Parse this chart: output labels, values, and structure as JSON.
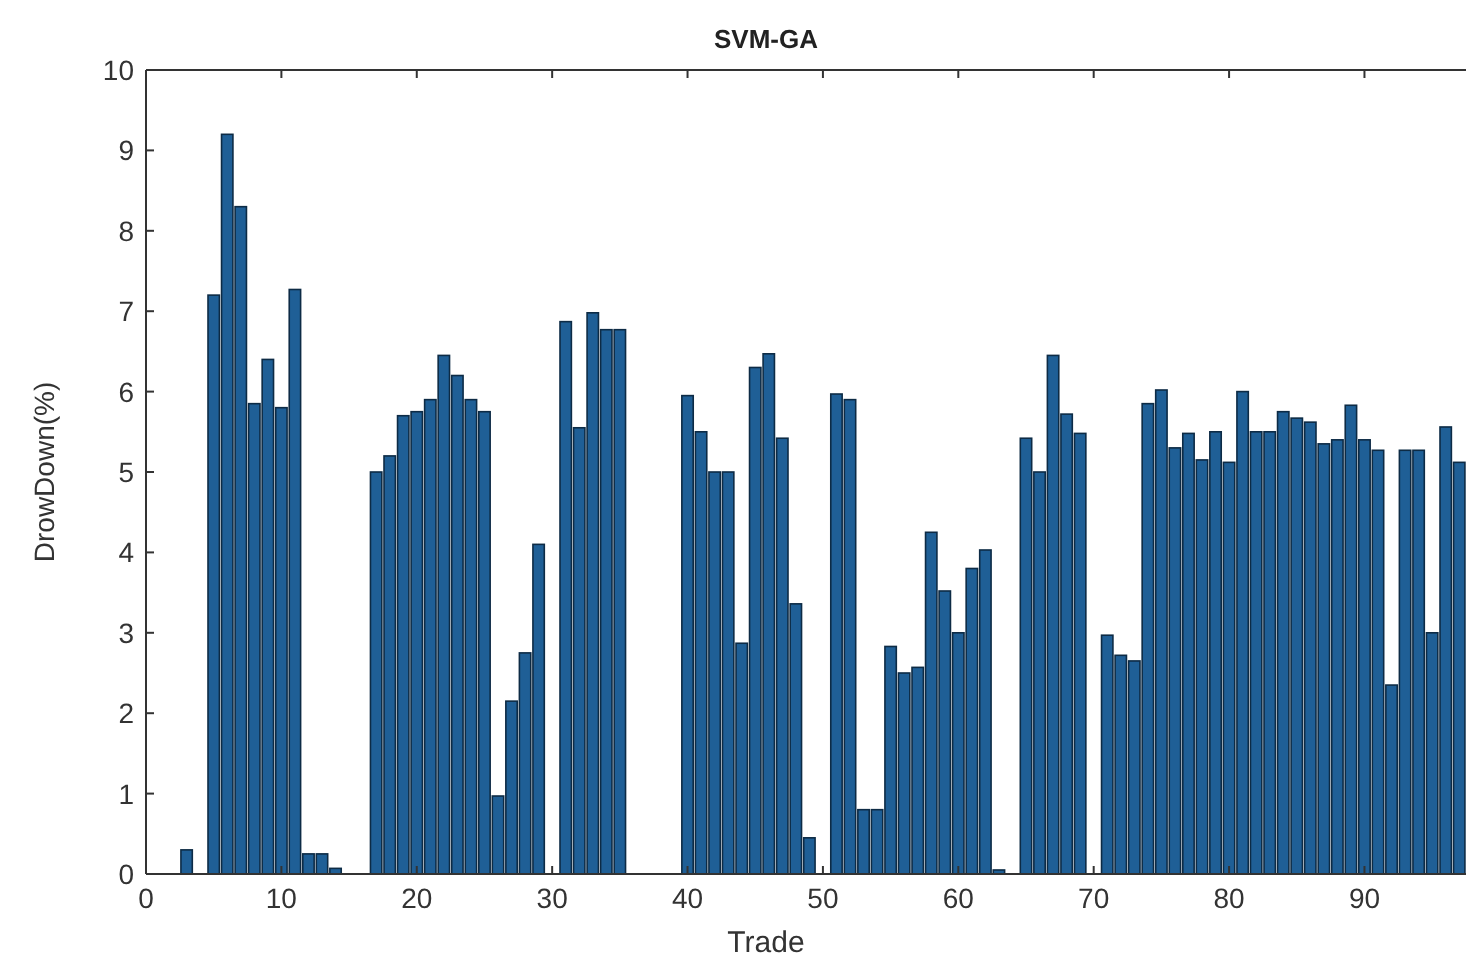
{
  "chart_data": {
    "type": "bar",
    "title": "SVM-GA",
    "xlabel": "Trade",
    "ylabel": "DrowDown(%)",
    "x": [
      1,
      2,
      3,
      4,
      5,
      6,
      7,
      8,
      9,
      10,
      11,
      12,
      13,
      14,
      15,
      16,
      17,
      18,
      19,
      20,
      21,
      22,
      23,
      24,
      25,
      26,
      27,
      28,
      29,
      30,
      31,
      32,
      33,
      34,
      35,
      36,
      37,
      38,
      39,
      40,
      41,
      42,
      43,
      44,
      45,
      46,
      47,
      48,
      49,
      50,
      51,
      52,
      53,
      54,
      55,
      56,
      57,
      58,
      59,
      60,
      61,
      62,
      63,
      64,
      65,
      66,
      67,
      68,
      69,
      70,
      71,
      72,
      73,
      74,
      75,
      76,
      77,
      78,
      79,
      80,
      81,
      82,
      83,
      84,
      85,
      86,
      87,
      88,
      89,
      90,
      91,
      92,
      93,
      94,
      95,
      96,
      97
    ],
    "values": [
      0,
      0,
      0.3,
      0,
      7.2,
      9.2,
      8.3,
      5.85,
      6.4,
      5.8,
      7.27,
      0.25,
      0.25,
      0.07,
      0,
      0,
      5.0,
      5.2,
      5.7,
      5.75,
      5.9,
      6.45,
      6.2,
      5.9,
      5.75,
      0.97,
      2.15,
      2.75,
      4.1,
      0,
      6.87,
      5.55,
      6.98,
      6.77,
      6.77,
      0,
      0,
      0,
      0,
      5.95,
      5.5,
      5.0,
      5.0,
      2.87,
      6.3,
      6.47,
      5.42,
      3.36,
      0.45,
      0,
      5.97,
      5.9,
      0.8,
      0.8,
      2.83,
      2.5,
      2.57,
      4.25,
      3.52,
      3.0,
      3.8,
      4.03,
      0.05,
      0,
      5.42,
      5.0,
      6.45,
      5.72,
      5.48,
      0,
      2.97,
      2.72,
      2.65,
      5.85,
      6.02,
      5.3,
      5.48,
      5.15,
      5.5,
      5.12,
      6.0,
      5.5,
      5.5,
      5.75,
      5.67,
      5.62,
      5.35,
      5.4,
      5.83,
      5.4,
      5.27,
      2.35,
      5.27,
      5.27,
      3.0,
      5.56,
      5.12
    ],
    "color": "#1f5f96",
    "xlim": [
      0,
      97.5
    ],
    "xticks": [
      0,
      10,
      20,
      30,
      40,
      50,
      60,
      70,
      80,
      90
    ],
    "ylim": [
      0,
      10
    ],
    "yticks": [
      0,
      1,
      2,
      3,
      4,
      5,
      6,
      7,
      8,
      9,
      10
    ],
    "grid": false
  }
}
